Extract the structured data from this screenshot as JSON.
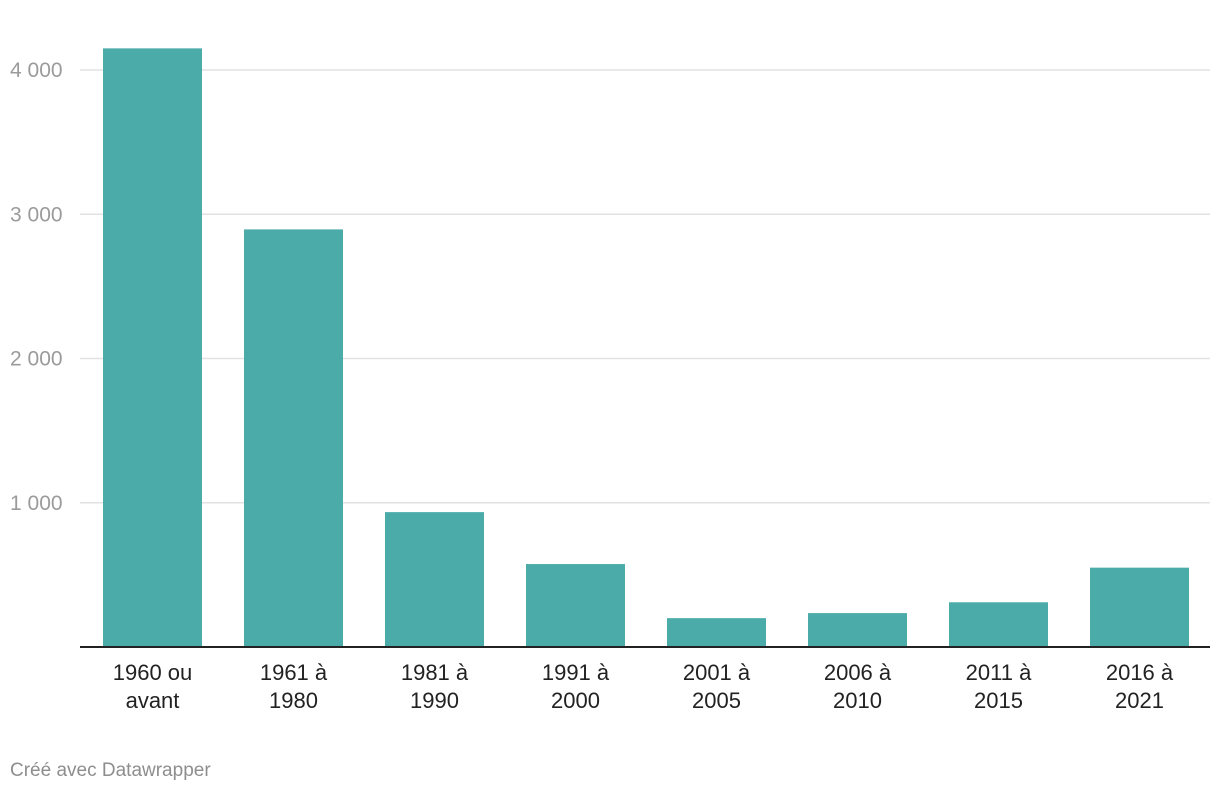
{
  "chart_data": {
    "type": "bar",
    "categories": [
      [
        "1960 ou",
        "avant"
      ],
      [
        "1961 à",
        "1980"
      ],
      [
        "1981 à",
        "1990"
      ],
      [
        "1991 à",
        "2000"
      ],
      [
        "2001 à",
        "2005"
      ],
      [
        "2006 à",
        "2010"
      ],
      [
        "2011 à",
        "2015"
      ],
      [
        "2016 à",
        "2021"
      ]
    ],
    "values": [
      4150,
      2895,
      935,
      575,
      200,
      235,
      310,
      550
    ],
    "ylim": [
      0,
      4000
    ],
    "yticks": [
      {
        "value": 1000,
        "label": "1 000"
      },
      {
        "value": 2000,
        "label": "2 000"
      },
      {
        "value": 3000,
        "label": "3 000"
      },
      {
        "value": 4000,
        "label": "4 000"
      }
    ],
    "grid": true,
    "bar_color": "#4aaba8",
    "title": "",
    "xlabel": "",
    "ylabel": ""
  },
  "footer": {
    "credit": "Créé avec Datawrapper"
  }
}
